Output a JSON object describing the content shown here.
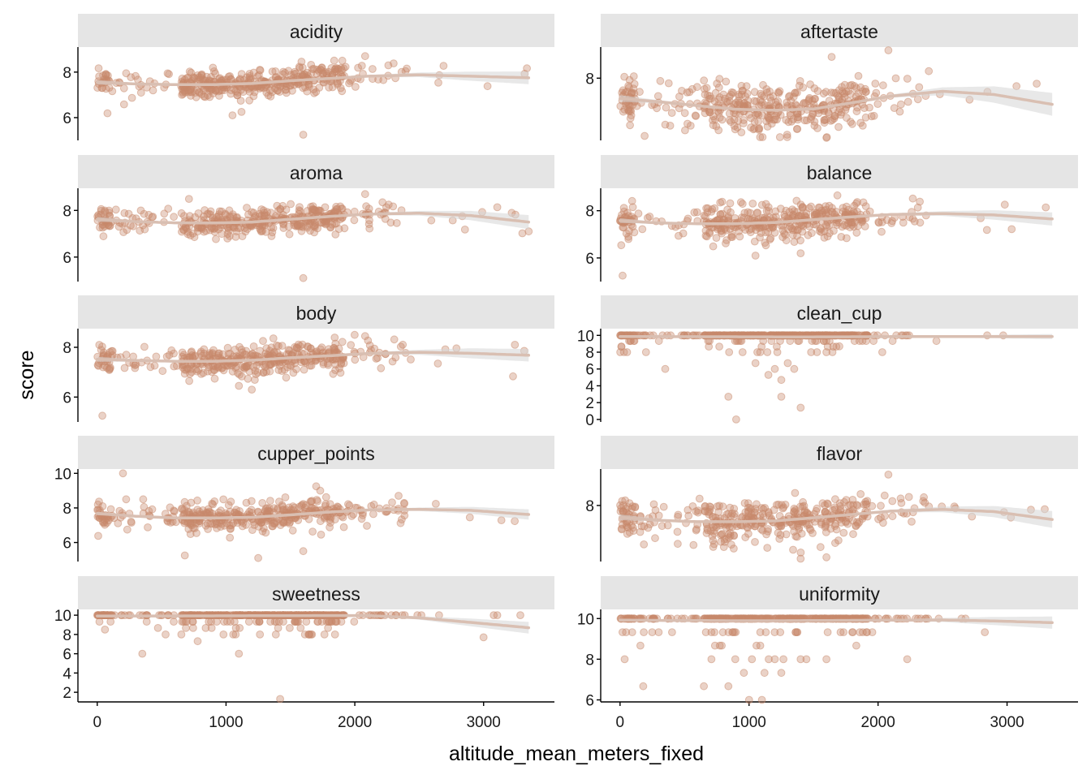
{
  "chart_data": {
    "type": "scatter",
    "layout": "facet_wrap ncol=2",
    "xlabel": "altitude_mean_meters_fixed",
    "ylabel": "score",
    "xlim": [
      -150,
      3550
    ],
    "x_ticks": [
      0,
      1000,
      2000,
      3000
    ],
    "colors": {
      "point": "#c8896c",
      "smooth_line": "#d9bfb2",
      "confidence_band": "#d6d6d6",
      "strip_background": "#e5e5e5"
    },
    "grid": false,
    "legend": "none",
    "panels": [
      {
        "name": "acidity",
        "ylim": [
          5.0,
          9.1
        ],
        "y_ticks": [
          6,
          8
        ],
        "trend_x": [
          0,
          300,
          600,
          900,
          1200,
          1500,
          1800,
          2100,
          2500,
          2900,
          3350
        ],
        "trend_y": [
          7.55,
          7.48,
          7.45,
          7.45,
          7.5,
          7.62,
          7.72,
          7.82,
          7.88,
          7.82,
          7.75
        ],
        "band_halfwidth": [
          0.1,
          0.05,
          0.03,
          0.02,
          0.02,
          0.02,
          0.03,
          0.05,
          0.1,
          0.2,
          0.28
        ],
        "cloud": {
          "center": 7.5,
          "spread": 0.32,
          "min": 6.0,
          "max": 8.7
        },
        "outliers": [
          [
            1600,
            5.25
          ],
          [
            1050,
            6.1
          ],
          [
            1120,
            6.25
          ],
          [
            2080,
            8.7
          ]
        ]
      },
      {
        "name": "aftertaste",
        "ylim": [
          6.1,
          8.95
        ],
        "y_ticks": [
          8
        ],
        "trend_x": [
          0,
          300,
          600,
          900,
          1200,
          1500,
          1800,
          2100,
          2500,
          2900,
          3350
        ],
        "trend_y": [
          7.38,
          7.28,
          7.16,
          7.05,
          7.02,
          7.06,
          7.25,
          7.45,
          7.6,
          7.5,
          7.2
        ],
        "band_halfwidth": [
          0.1,
          0.05,
          0.03,
          0.02,
          0.02,
          0.02,
          0.03,
          0.05,
          0.12,
          0.25,
          0.35
        ],
        "cloud": {
          "center": 7.2,
          "spread": 0.36,
          "min": 6.2,
          "max": 8.6
        },
        "outliers": [
          [
            1600,
            6.18
          ],
          [
            2080,
            8.85
          ],
          [
            1640,
            8.65
          ]
        ]
      },
      {
        "name": "aroma",
        "ylim": [
          4.95,
          8.95
        ],
        "y_ticks": [
          6,
          8
        ],
        "trend_x": [
          0,
          300,
          600,
          900,
          1200,
          1500,
          1800,
          2100,
          2500,
          2900,
          3350
        ],
        "trend_y": [
          7.62,
          7.52,
          7.47,
          7.46,
          7.5,
          7.62,
          7.74,
          7.84,
          7.88,
          7.78,
          7.5
        ],
        "band_halfwidth": [
          0.1,
          0.05,
          0.03,
          0.02,
          0.02,
          0.02,
          0.03,
          0.05,
          0.1,
          0.2,
          0.3
        ],
        "cloud": {
          "center": 7.55,
          "spread": 0.3,
          "min": 6.3,
          "max": 8.6
        },
        "outliers": [
          [
            1600,
            5.1
          ],
          [
            2080,
            8.7
          ],
          [
            3350,
            7.1
          ]
        ]
      },
      {
        "name": "balance",
        "ylim": [
          5.0,
          8.95
        ],
        "y_ticks": [
          6,
          8
        ],
        "trend_x": [
          0,
          300,
          600,
          900,
          1200,
          1500,
          1800,
          2100,
          2500,
          2900,
          3350
        ],
        "trend_y": [
          7.58,
          7.48,
          7.45,
          7.45,
          7.5,
          7.62,
          7.74,
          7.84,
          7.88,
          7.82,
          7.65
        ],
        "band_halfwidth": [
          0.1,
          0.05,
          0.03,
          0.02,
          0.02,
          0.02,
          0.03,
          0.05,
          0.1,
          0.2,
          0.28
        ],
        "cloud": {
          "center": 7.55,
          "spread": 0.36,
          "min": 6.1,
          "max": 8.7
        },
        "outliers": [
          [
            20,
            5.25
          ],
          [
            1050,
            6.1
          ],
          [
            1400,
            6.2
          ]
        ]
      },
      {
        "name": "body",
        "ylim": [
          5.0,
          8.75
        ],
        "y_ticks": [
          6,
          8
        ],
        "trend_x": [
          0,
          300,
          600,
          900,
          1200,
          1500,
          1800,
          2100,
          2500,
          2900,
          3350
        ],
        "trend_y": [
          7.52,
          7.47,
          7.44,
          7.44,
          7.48,
          7.58,
          7.66,
          7.75,
          7.8,
          7.76,
          7.68
        ],
        "band_halfwidth": [
          0.1,
          0.05,
          0.03,
          0.02,
          0.02,
          0.02,
          0.03,
          0.05,
          0.1,
          0.2,
          0.25
        ],
        "cloud": {
          "center": 7.5,
          "spread": 0.3,
          "min": 6.3,
          "max": 8.5
        },
        "outliers": [
          [
            40,
            5.25
          ],
          [
            1200,
            6.3
          ],
          [
            1100,
            6.45
          ],
          [
            2080,
            8.45
          ]
        ]
      },
      {
        "name": "clean_cup",
        "ylim": [
          -0.3,
          10.8
        ],
        "y_ticks": [
          0,
          2,
          4,
          6,
          8,
          10
        ],
        "trend_x": [
          0,
          300,
          600,
          900,
          1200,
          1500,
          1800,
          2100,
          2500,
          2900,
          3350
        ],
        "trend_y": [
          9.85,
          9.85,
          9.84,
          9.83,
          9.82,
          9.82,
          9.83,
          9.85,
          9.86,
          9.86,
          9.86
        ],
        "band_halfwidth": [
          0.1,
          0.05,
          0.03,
          0.02,
          0.02,
          0.02,
          0.03,
          0.05,
          0.1,
          0.2,
          0.3
        ],
        "cloud": {
          "type": "discrete",
          "top": 10
        },
        "outliers": [
          [
            350,
            6.0
          ],
          [
            840,
            2.7
          ],
          [
            900,
            0.0
          ],
          [
            1250,
            2.7
          ],
          [
            1400,
            1.4
          ],
          [
            1050,
            6.7
          ],
          [
            1150,
            5.3
          ],
          [
            1200,
            6.0
          ],
          [
            1300,
            6.7
          ],
          [
            1250,
            4.7
          ],
          [
            1350,
            6.0
          ],
          [
            950,
            8.0
          ],
          [
            1600,
            8.0
          ],
          [
            1700,
            8.7
          ]
        ]
      },
      {
        "name": "cupper_points",
        "ylim": [
          4.9,
          10.25
        ],
        "y_ticks": [
          6,
          8,
          10
        ],
        "trend_x": [
          0,
          300,
          600,
          900,
          1200,
          1500,
          1800,
          2100,
          2500,
          2900,
          3350
        ],
        "trend_y": [
          7.68,
          7.52,
          7.42,
          7.42,
          7.46,
          7.6,
          7.76,
          7.88,
          7.92,
          7.86,
          7.62
        ],
        "band_halfwidth": [
          0.1,
          0.05,
          0.03,
          0.02,
          0.02,
          0.02,
          0.03,
          0.05,
          0.1,
          0.2,
          0.3
        ],
        "cloud": {
          "center": 7.5,
          "spread": 0.42,
          "min": 6.0,
          "max": 9.0
        },
        "outliers": [
          [
            200,
            10.0
          ],
          [
            680,
            5.25
          ],
          [
            1250,
            5.1
          ],
          [
            1600,
            5.5
          ],
          [
            1700,
            9.25
          ]
        ]
      },
      {
        "name": "flavor",
        "ylim": [
          6.0,
          9.3
        ],
        "y_ticks": [
          8
        ],
        "trend_x": [
          0,
          300,
          600,
          900,
          1200,
          1500,
          1800,
          2100,
          2500,
          2900,
          3350
        ],
        "trend_y": [
          7.58,
          7.47,
          7.42,
          7.42,
          7.45,
          7.56,
          7.68,
          7.8,
          7.86,
          7.78,
          7.5
        ],
        "band_halfwidth": [
          0.1,
          0.05,
          0.03,
          0.02,
          0.02,
          0.02,
          0.03,
          0.05,
          0.1,
          0.2,
          0.3
        ],
        "cloud": {
          "center": 7.45,
          "spread": 0.36,
          "min": 6.15,
          "max": 8.9
        },
        "outliers": [
          [
            2080,
            9.1
          ],
          [
            1400,
            6.1
          ],
          [
            1600,
            6.15
          ]
        ]
      },
      {
        "name": "sweetness",
        "ylim": [
          1.0,
          10.6
        ],
        "y_ticks": [
          2,
          4,
          6,
          8,
          10
        ],
        "trend_x": [
          0,
          300,
          600,
          900,
          1200,
          1500,
          1800,
          2100,
          2500,
          2900,
          3350
        ],
        "trend_y": [
          9.92,
          9.92,
          9.92,
          9.93,
          9.94,
          9.95,
          9.96,
          9.96,
          9.72,
          9.25,
          8.7
        ],
        "band_halfwidth": [
          0.08,
          0.04,
          0.02,
          0.02,
          0.02,
          0.02,
          0.03,
          0.05,
          0.18,
          0.4,
          0.6
        ],
        "cloud": {
          "type": "discrete",
          "top": 10
        },
        "outliers": [
          [
            1420,
            1.3
          ],
          [
            350,
            6.0
          ],
          [
            1100,
            6.0
          ],
          [
            3000,
            7.7
          ],
          [
            60,
            8.5
          ],
          [
            780,
            7.3
          ],
          [
            980,
            8.0
          ]
        ]
      },
      {
        "name": "uniformity",
        "ylim": [
          5.9,
          10.45
        ],
        "y_ticks": [
          6,
          8,
          10
        ],
        "trend_x": [
          0,
          300,
          600,
          900,
          1200,
          1500,
          1800,
          2100,
          2500,
          2900,
          3350
        ],
        "trend_y": [
          9.92,
          9.91,
          9.9,
          9.89,
          9.89,
          9.9,
          9.91,
          9.92,
          9.93,
          9.88,
          9.8
        ],
        "band_halfwidth": [
          0.06,
          0.03,
          0.02,
          0.02,
          0.02,
          0.02,
          0.02,
          0.04,
          0.1,
          0.2,
          0.3
        ],
        "cloud": {
          "type": "discrete",
          "top": 10
        },
        "outliers": [
          [
            180,
            6.67
          ],
          [
            650,
            6.67
          ],
          [
            840,
            6.67
          ],
          [
            1000,
            6.0
          ],
          [
            1100,
            6.0
          ],
          [
            960,
            7.33
          ],
          [
            1120,
            7.33
          ],
          [
            1250,
            7.33
          ],
          [
            1200,
            8.0
          ],
          [
            1400,
            8.0
          ],
          [
            1600,
            8.0
          ]
        ]
      }
    ]
  }
}
